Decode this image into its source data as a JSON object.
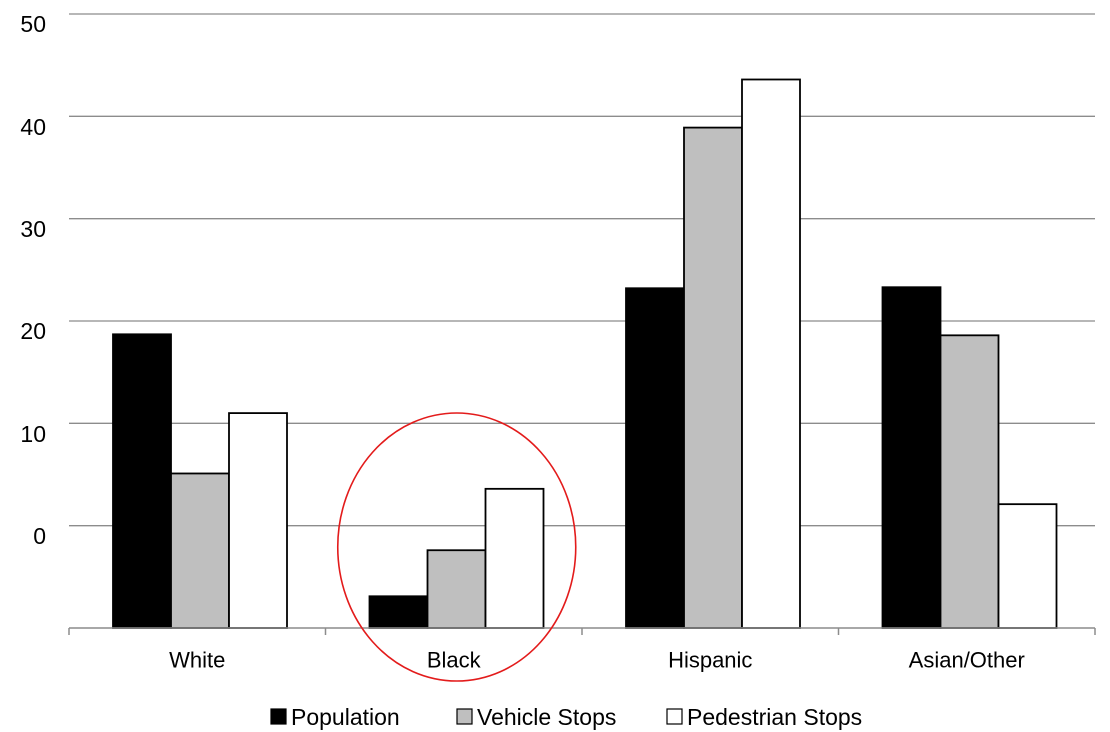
{
  "chart_data": {
    "type": "bar",
    "categories": [
      "White",
      "Black",
      "Hispanic",
      "Asian/Other"
    ],
    "series": [
      {
        "name": "Population",
        "color": "#000000",
        "values": [
          28.7,
          3.1,
          33.2,
          33.3
        ]
      },
      {
        "name": "Vehicle Stops",
        "color": "#bfbfbf",
        "values": [
          15.1,
          7.6,
          48.9,
          28.6
        ]
      },
      {
        "name": "Pedestrian Stops",
        "color": "#ffffff",
        "values": [
          21.0,
          13.6,
          53.6,
          12.1
        ]
      }
    ],
    "y_tick_labels": [
      "0",
      "10",
      "20",
      "30",
      "40",
      "50"
    ],
    "ylim": [
      0,
      60
    ],
    "grid": true,
    "legend_position": "bottom",
    "annotations": [
      {
        "type": "ellipse",
        "target_category": "Black",
        "color": "#e31b1b"
      }
    ]
  }
}
